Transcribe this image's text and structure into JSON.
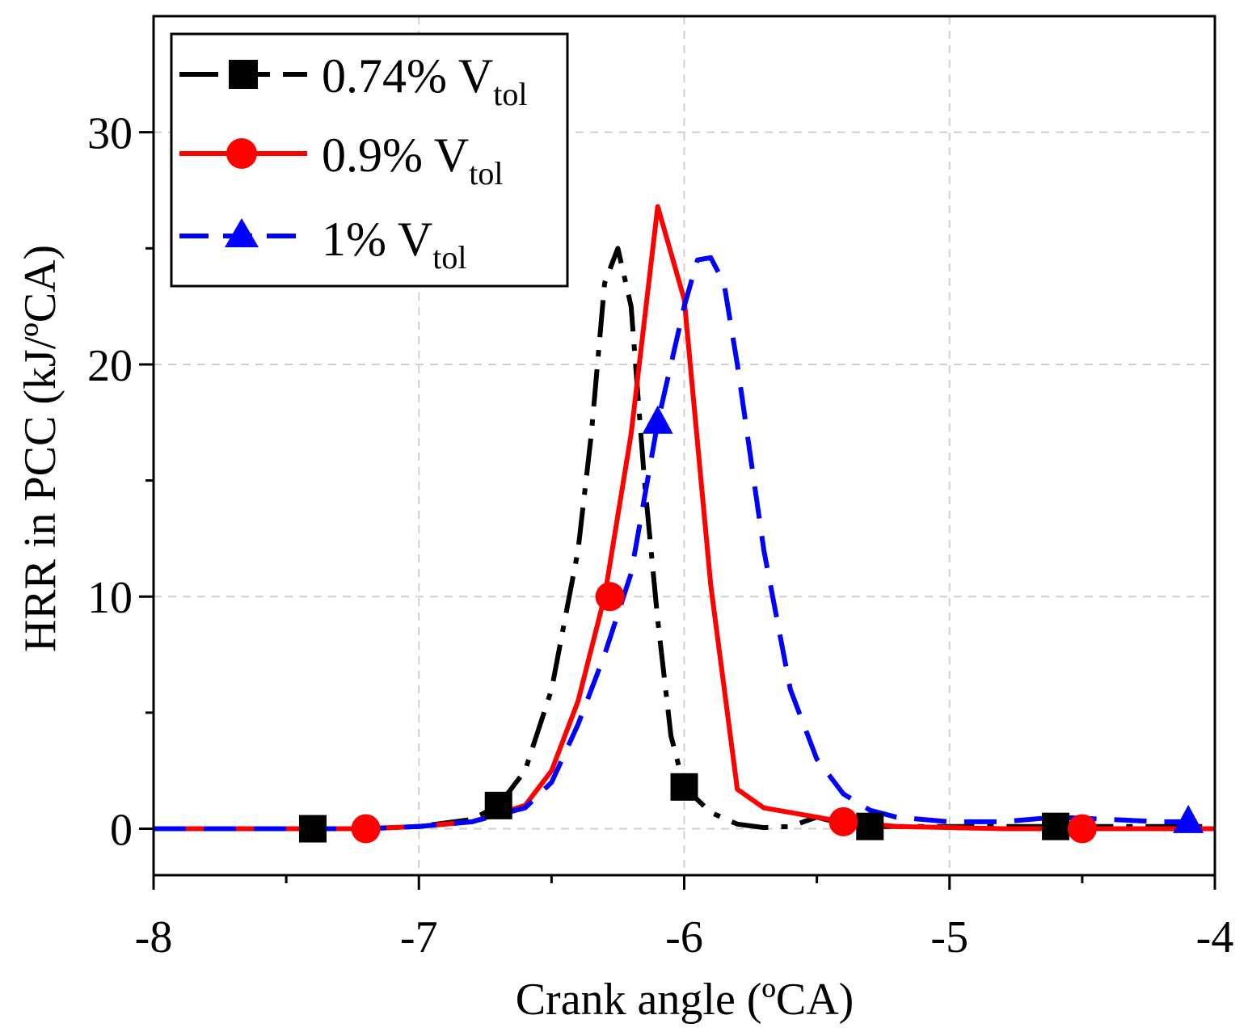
{
  "chart_data": {
    "type": "line",
    "title": "",
    "xlabel": "Crank angle (ºCA)",
    "ylabel": "HRR in PCC (kJ/ºCA)",
    "xlim": [
      -8,
      -4
    ],
    "ylim": [
      -2,
      35
    ],
    "xticks": [
      -8,
      -7,
      -6,
      -5,
      -4
    ],
    "xtick_labels": [
      "-8",
      "-7",
      "-6",
      "-5",
      "-4"
    ],
    "yticks": [
      0,
      10,
      20,
      30
    ],
    "ytick_labels": [
      "0",
      "10",
      "20",
      "30"
    ],
    "grid": true,
    "legend_position": "top-left",
    "series": [
      {
        "name": "0.74% V",
        "name_main": "0.74% V",
        "name_sub": "tol",
        "color": "#000000",
        "marker": "square",
        "line_style": "dashdot",
        "x": [
          -8.0,
          -7.6,
          -7.4,
          -7.2,
          -7.0,
          -6.8,
          -6.7,
          -6.6,
          -6.5,
          -6.4,
          -6.35,
          -6.3,
          -6.25,
          -6.2,
          -6.15,
          -6.1,
          -6.05,
          -6.0,
          -5.9,
          -5.8,
          -5.7,
          -5.6,
          -5.5,
          -5.4,
          -5.3,
          -5.0,
          -4.6,
          -4.0
        ],
        "y": [
          0,
          0,
          0,
          0,
          0.1,
          0.4,
          1.0,
          2.5,
          6.0,
          12.0,
          17.0,
          23.5,
          25.0,
          22.5,
          15.0,
          9.0,
          4.0,
          1.8,
          0.7,
          0.2,
          0.05,
          0.1,
          0.5,
          0.2,
          0.1,
          0.1,
          0.1,
          0.1
        ],
        "markers_x": [
          -7.4,
          -6.7,
          -6.0,
          -5.3,
          -4.6
        ],
        "markers_y": [
          0,
          1.0,
          1.8,
          0.1,
          0.1
        ]
      },
      {
        "name": "0.9% V",
        "name_main": "0.9% V",
        "name_sub": "tol",
        "color": "#ff0000",
        "marker": "circle",
        "line_style": "solid",
        "x": [
          -8.0,
          -7.6,
          -7.4,
          -7.2,
          -7.0,
          -6.8,
          -6.6,
          -6.5,
          -6.4,
          -6.3,
          -6.2,
          -6.1,
          -6.0,
          -5.9,
          -5.8,
          -5.7,
          -5.6,
          -5.5,
          -5.4,
          -5.3,
          -5.2,
          -5.0,
          -4.8,
          -4.6,
          -4.5,
          -4.2,
          -4.0
        ],
        "y": [
          0,
          0,
          0,
          0,
          0.1,
          0.3,
          1.0,
          2.5,
          5.5,
          10.0,
          17.0,
          26.8,
          22.8,
          10.5,
          1.7,
          0.9,
          0.7,
          0.5,
          0.3,
          0.2,
          0.1,
          0.05,
          0,
          0,
          0,
          0,
          0
        ],
        "markers_x": [
          -7.2,
          -6.28,
          -6.1,
          -5.4,
          -4.5
        ],
        "markers_y": [
          0,
          10.0,
          26.8,
          0.3,
          0
        ],
        "markers_visible": [
          true,
          true,
          false,
          true,
          true
        ]
      },
      {
        "name": "1% V",
        "name_main": "1% V",
        "name_sub": "tol",
        "color": "#0000ff",
        "marker": "triangle",
        "line_style": "dashed",
        "x": [
          -8.0,
          -7.6,
          -7.4,
          -7.2,
          -7.0,
          -6.8,
          -6.6,
          -6.5,
          -6.4,
          -6.3,
          -6.2,
          -6.1,
          -6.0,
          -5.95,
          -5.9,
          -5.85,
          -5.8,
          -5.7,
          -5.6,
          -5.5,
          -5.4,
          -5.3,
          -5.2,
          -5.0,
          -4.8,
          -4.6,
          -4.4,
          -4.2,
          -4.1,
          -4.0
        ],
        "y": [
          0,
          0,
          0,
          0,
          0.1,
          0.3,
          0.9,
          2.0,
          4.5,
          7.5,
          11.0,
          17.5,
          22.5,
          24.5,
          24.6,
          23.5,
          20.0,
          12.0,
          6.0,
          3.0,
          1.5,
          0.8,
          0.5,
          0.3,
          0.3,
          0.5,
          0.4,
          0.3,
          0.3,
          0.3
        ],
        "markers_x": [
          -6.1,
          -4.1
        ],
        "markers_y": [
          17.5,
          0.3
        ]
      }
    ]
  }
}
